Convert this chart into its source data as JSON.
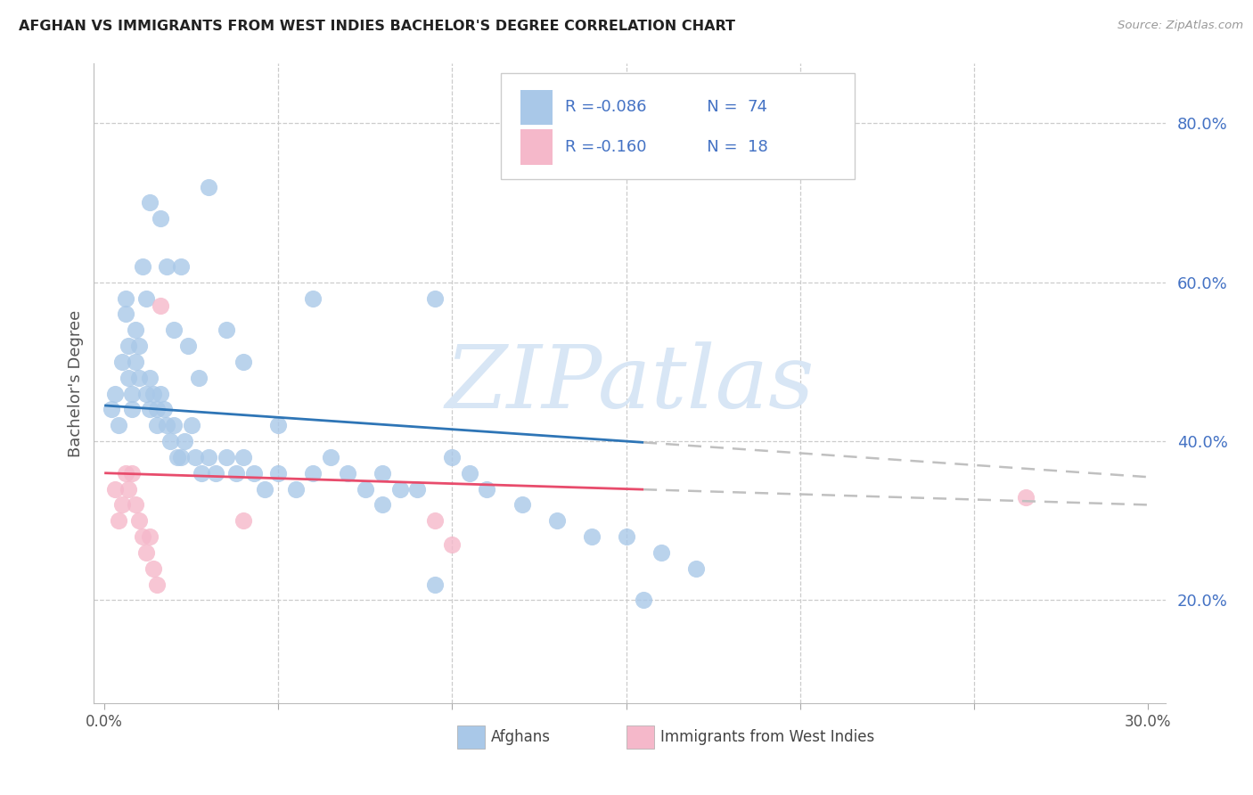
{
  "title": "AFGHAN VS IMMIGRANTS FROM WEST INDIES BACHELOR'S DEGREE CORRELATION CHART",
  "source_text": "Source: ZipAtlas.com",
  "ylabel": "Bachelor's Degree",
  "xlim": [
    -0.003,
    0.305
  ],
  "ylim": [
    0.07,
    0.875
  ],
  "xtick_positions": [
    0.0,
    0.05,
    0.1,
    0.15,
    0.2,
    0.25,
    0.3
  ],
  "xtick_labels": [
    "0.0%",
    "",
    "",
    "",
    "",
    "",
    "30.0%"
  ],
  "ytick_right_positions": [
    0.2,
    0.4,
    0.6,
    0.8
  ],
  "ytick_right_labels": [
    "20.0%",
    "40.0%",
    "60.0%",
    "80.0%"
  ],
  "blue_scatter_color": "#A9C8E8",
  "pink_scatter_color": "#F5B8CA",
  "blue_line_color": "#2E75B6",
  "pink_line_color": "#E84C6C",
  "gray_dash_color": "#C0C0C0",
  "grid_color": "#CCCCCC",
  "right_axis_color": "#4472C4",
  "legend_text_color": "#4472C4",
  "watermark_text": "ZIPatlas",
  "watermark_color": "#D8E6F5",
  "legend_r1_val": "-0.086",
  "legend_n1_val": "74",
  "legend_r2_val": "-0.160",
  "legend_n2_val": "18",
  "blue_trend_y0": 0.445,
  "blue_trend_y1": 0.355,
  "pink_trend_y0": 0.36,
  "pink_trend_y1": 0.32,
  "trend_x0": 0.0,
  "trend_x1": 0.3,
  "trend_solid_x1": 0.155,
  "afghans_x": [
    0.002,
    0.003,
    0.004,
    0.005,
    0.006,
    0.006,
    0.007,
    0.007,
    0.008,
    0.008,
    0.009,
    0.009,
    0.01,
    0.01,
    0.011,
    0.012,
    0.012,
    0.013,
    0.013,
    0.014,
    0.015,
    0.015,
    0.016,
    0.017,
    0.018,
    0.019,
    0.02,
    0.021,
    0.022,
    0.023,
    0.025,
    0.026,
    0.028,
    0.03,
    0.032,
    0.035,
    0.038,
    0.04,
    0.043,
    0.046,
    0.05,
    0.055,
    0.06,
    0.065,
    0.07,
    0.075,
    0.08,
    0.085,
    0.09,
    0.095,
    0.1,
    0.105,
    0.11,
    0.12,
    0.13,
    0.14,
    0.15,
    0.16,
    0.17,
    0.013,
    0.016,
    0.018,
    0.02,
    0.022,
    0.024,
    0.027,
    0.03,
    0.035,
    0.04,
    0.05,
    0.06,
    0.08,
    0.095,
    0.155
  ],
  "afghans_y": [
    0.44,
    0.46,
    0.42,
    0.5,
    0.58,
    0.56,
    0.52,
    0.48,
    0.46,
    0.44,
    0.54,
    0.5,
    0.48,
    0.52,
    0.62,
    0.58,
    0.46,
    0.44,
    0.48,
    0.46,
    0.44,
    0.42,
    0.46,
    0.44,
    0.42,
    0.4,
    0.42,
    0.38,
    0.38,
    0.4,
    0.42,
    0.38,
    0.36,
    0.38,
    0.36,
    0.38,
    0.36,
    0.38,
    0.36,
    0.34,
    0.36,
    0.34,
    0.36,
    0.38,
    0.36,
    0.34,
    0.32,
    0.34,
    0.34,
    0.58,
    0.38,
    0.36,
    0.34,
    0.32,
    0.3,
    0.28,
    0.28,
    0.26,
    0.24,
    0.7,
    0.68,
    0.62,
    0.54,
    0.62,
    0.52,
    0.48,
    0.72,
    0.54,
    0.5,
    0.42,
    0.58,
    0.36,
    0.22,
    0.2
  ],
  "wi_x": [
    0.003,
    0.004,
    0.005,
    0.006,
    0.007,
    0.008,
    0.009,
    0.01,
    0.011,
    0.012,
    0.013,
    0.014,
    0.015,
    0.016,
    0.04,
    0.095,
    0.1,
    0.265
  ],
  "wi_y": [
    0.34,
    0.3,
    0.32,
    0.36,
    0.34,
    0.36,
    0.32,
    0.3,
    0.28,
    0.26,
    0.28,
    0.24,
    0.22,
    0.57,
    0.3,
    0.3,
    0.27,
    0.33
  ]
}
